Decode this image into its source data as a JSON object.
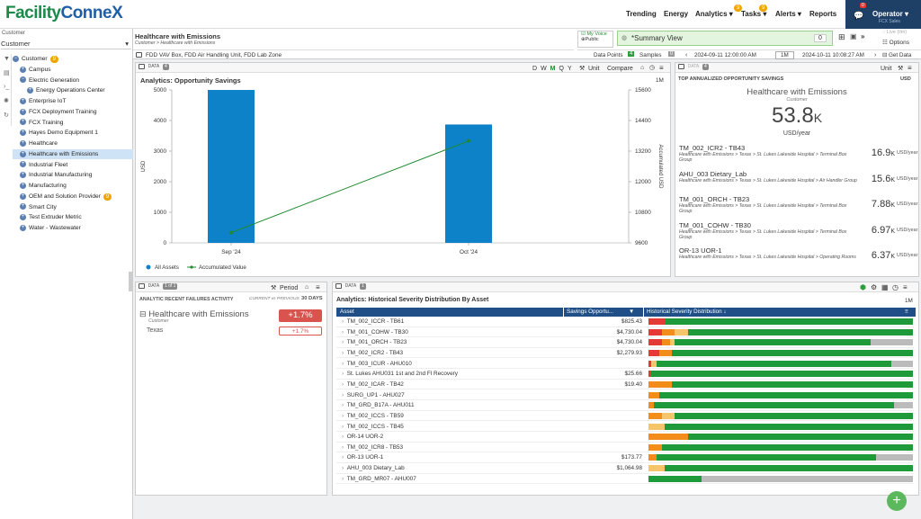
{
  "app": {
    "logo_a": "Facility",
    "logo_b": "Conne",
    "logo_x": "X"
  },
  "nav": {
    "items": [
      "Trending",
      "Energy",
      "Analytics",
      "Tasks",
      "Alerts",
      "Reports"
    ],
    "analytics_badge": "9",
    "tasks_badge": "9"
  },
  "operator": {
    "label": "Operator",
    "sub": "FCX Sales",
    "notif": "0"
  },
  "sidebar": {
    "label": "Customer",
    "select": "Customer",
    "items": [
      {
        "label": "Customer",
        "badge": "9",
        "level": 0,
        "toggle": "minus"
      },
      {
        "label": "Campus",
        "level": 1,
        "toggle": "plus"
      },
      {
        "label": "Electric Generation",
        "level": 1,
        "toggle": "minus"
      },
      {
        "label": "Energy Operations Center",
        "level": 2,
        "toggle": "plus"
      },
      {
        "label": "Enterprise IoT",
        "level": 1,
        "toggle": "plus"
      },
      {
        "label": "FCX Deployment Training",
        "level": 1,
        "toggle": "plus"
      },
      {
        "label": "FCX Training",
        "level": 1,
        "toggle": "plus"
      },
      {
        "label": "Hayes Demo Equipment 1",
        "level": 1,
        "toggle": "plus"
      },
      {
        "label": "Healthcare",
        "level": 1,
        "toggle": "plus"
      },
      {
        "label": "Healthcare with Emissions",
        "level": 1,
        "toggle": "plus",
        "selected": true
      },
      {
        "label": "Industrial Fleet",
        "level": 1,
        "toggle": "plus"
      },
      {
        "label": "Industrial Manufacturing",
        "level": 1,
        "toggle": "plus"
      },
      {
        "label": "Manufacturing",
        "level": 1,
        "toggle": "plus"
      },
      {
        "label": "OEM and Solution Provider",
        "badge": "9",
        "level": 1,
        "toggle": "plus"
      },
      {
        "label": "Smart City",
        "level": 1,
        "toggle": "plus"
      },
      {
        "label": "Test Extruder Metric",
        "level": 1,
        "toggle": "plus"
      },
      {
        "label": "Water - Wastewater",
        "level": 1,
        "toggle": "plus"
      }
    ]
  },
  "header": {
    "title": "Healthcare with Emissions",
    "breadcrumb": "Customer > Healthcare with Emissions",
    "my_voice": "My Voice",
    "public": "Public",
    "view": "*Summary View",
    "view_count": "0",
    "live": "Live (llm)",
    "options": "Options",
    "filter": "FDD VAV Box, FDD Air Handling Unit, FDD Lab Zone",
    "data_points_label": "Data Points",
    "data_points": "4",
    "samples_label": "Samples",
    "samples": "0",
    "date_from": "2024-09-11 12:00:00 AM",
    "range": "1M",
    "date_to": "2024-10-11 10:08:27 AM",
    "get_data": "Get Data"
  },
  "chart_panel": {
    "tag": "DATA",
    "tag_count": "4",
    "periods": [
      "D",
      "W",
      "M",
      "Q",
      "Y"
    ],
    "active_period": "M",
    "unit": "Unit",
    "compare": "Compare",
    "title": "Analytics: Opportunity Savings",
    "range": "1M",
    "legend_bar": "All Assets",
    "legend_line": "Accumulated Value"
  },
  "chart_data": {
    "type": "bar",
    "categories": [
      "Sep '24",
      "Oct '24"
    ],
    "series": [
      {
        "name": "All Assets",
        "type": "bar",
        "values": [
          5000,
          3870
        ]
      },
      {
        "name": "Accumulated Value",
        "type": "line",
        "axis": "right",
        "values": [
          10000,
          13600
        ]
      }
    ],
    "ylabel": "USD",
    "y2label": "Accumulated USD",
    "ylim": [
      0,
      5000
    ],
    "y2lim": [
      9600,
      15600
    ],
    "yticks": [
      0,
      1000,
      2000,
      3000,
      4000,
      5000
    ],
    "y2ticks": [
      9600,
      10800,
      12000,
      13200,
      14400,
      15600
    ],
    "colors": {
      "bar": "#0d82c9",
      "line": "#1e8a2e"
    }
  },
  "kpi": {
    "tag": "DATA",
    "tag_count": "4",
    "unit": "Unit",
    "header": "TOP ANNUALIZED OPPORTUNITY SAVINGS",
    "header_unit": "USD",
    "title": "Healthcare with Emissions",
    "sub": "Customer",
    "value": "53.8",
    "suffix": "K",
    "value_unit": "USD/year",
    "rows": [
      {
        "t": "TM_002_ICR2 - TB43",
        "s": "Healthcare with Emissions > Texas > St. Lukes Lakeside Hospital > Terminal Box Group",
        "n": "16.9",
        "k": "K",
        "u": "USD/year"
      },
      {
        "t": "AHU_003 Dietary_Lab",
        "s": "Healthcare with Emissions > Texas > St. Lukes Lakeside Hospital > Air Handler Group",
        "n": "15.6",
        "k": "K",
        "u": "USD/year"
      },
      {
        "t": "TM_001_ORCH - TB23",
        "s": "Healthcare with Emissions > Texas > St. Lukes Lakeside Hospital > Terminal Box Group",
        "n": "7.88",
        "k": "K",
        "u": "USD/year"
      },
      {
        "t": "TM_001_COHW - TB30",
        "s": "Healthcare with Emissions > Texas > St. Lukes Lakeside Hospital > Terminal Box Group",
        "n": "6.97",
        "k": "K",
        "u": "USD/year"
      },
      {
        "t": "OR-13 UOR-1",
        "s": "Healthcare with Emissions > Texas > St. Lukes Lakeside Hospital > Operating Rooms",
        "n": "6.37",
        "k": "K",
        "u": "USD/year"
      }
    ]
  },
  "failures": {
    "tag": "DATA",
    "tag_count": "1 of 1",
    "period": "Period",
    "header": "ANALYTIC RECENT FAILURES ACTIVITY",
    "cmp": "CURRENT vs PREVIOUS",
    "days": "30 DAYS",
    "name": "Healthcare with Emissions",
    "sub": "Customer",
    "delta": "+1.7%",
    "child": "Texas",
    "child_delta": "+1.7%"
  },
  "grid": {
    "tag": "DATA",
    "tag_count": "1",
    "title": "Analytics: Historical Severity Distribution By Asset",
    "range": "1M",
    "col_asset": "Asset",
    "col_savings": "Savings Opportu...",
    "col_sev": "Historical Severity Distribution",
    "rows": [
      {
        "a": "TM_002_ICCR - TB61",
        "v": "$825.43",
        "sev": [
          [
            "#e53935",
            0,
            6
          ],
          [
            "#1e9a3a",
            6,
            100
          ]
        ]
      },
      {
        "a": "TM_001_COHW - TB30",
        "v": "$4,730.04",
        "sev": [
          [
            "#e53935",
            0,
            5
          ],
          [
            "#f28c1a",
            5,
            10
          ],
          [
            "#f5c46b",
            10,
            15
          ],
          [
            "#1e9a3a",
            15,
            100
          ]
        ]
      },
      {
        "a": "TM_001_ORCH - TB23",
        "v": "$4,730.04",
        "sev": [
          [
            "#e53935",
            0,
            5
          ],
          [
            "#f28c1a",
            5,
            8
          ],
          [
            "#f5c46b",
            8,
            10
          ],
          [
            "#1e9a3a",
            10,
            84
          ],
          [
            "#bbbbbb",
            84,
            100
          ]
        ]
      },
      {
        "a": "TM_002_ICR2 - TB43",
        "v": "$2,279.93",
        "sev": [
          [
            "#e53935",
            0,
            4
          ],
          [
            "#f28c1a",
            4,
            9
          ],
          [
            "#1e9a3a",
            9,
            100
          ]
        ]
      },
      {
        "a": "TM_003_ICUR - AHU010",
        "v": "",
        "sev": [
          [
            "#e53935",
            0,
            1
          ],
          [
            "#f5c46b",
            1,
            3
          ],
          [
            "#1e9a3a",
            3,
            92
          ],
          [
            "#bbbbbb",
            92,
            100
          ]
        ]
      },
      {
        "a": "St. Lukes AHU031 1st and 2nd Fl Recovery",
        "v": "$25.66",
        "sev": [
          [
            "#e53935",
            0,
            1
          ],
          [
            "#1e9a3a",
            1,
            100
          ]
        ]
      },
      {
        "a": "TM_002_ICAR - TB42",
        "v": "$19.40",
        "sev": [
          [
            "#f28c1a",
            0,
            9
          ],
          [
            "#1e9a3a",
            9,
            100
          ]
        ]
      },
      {
        "a": "SURG_UP1 - AHU027",
        "v": "",
        "sev": [
          [
            "#f28c1a",
            0,
            4
          ],
          [
            "#1e9a3a",
            4,
            100
          ]
        ]
      },
      {
        "a": "TM_GRD_B17A - AHU011",
        "v": "",
        "sev": [
          [
            "#f28c1a",
            0,
            2
          ],
          [
            "#1e9a3a",
            2,
            93
          ],
          [
            "#bbbbbb",
            93,
            100
          ]
        ]
      },
      {
        "a": "TM_002_ICCS - TB59",
        "v": "",
        "sev": [
          [
            "#f28c1a",
            0,
            5
          ],
          [
            "#f5c46b",
            5,
            10
          ],
          [
            "#1e9a3a",
            10,
            100
          ]
        ]
      },
      {
        "a": "TM_002_ICCS - TB45",
        "v": "",
        "sev": [
          [
            "#f5c46b",
            0,
            6
          ],
          [
            "#1e9a3a",
            6,
            100
          ]
        ]
      },
      {
        "a": "OR-14 UOR-2",
        "v": "",
        "sev": [
          [
            "#f28c1a",
            0,
            15
          ],
          [
            "#1e9a3a",
            15,
            100
          ]
        ]
      },
      {
        "a": "TM_002_ICR8 - TB53",
        "v": "",
        "sev": [
          [
            "#f28c1a",
            0,
            5
          ],
          [
            "#1e9a3a",
            5,
            100
          ]
        ]
      },
      {
        "a": "OR-13 UOR-1",
        "v": "$173.77",
        "sev": [
          [
            "#f28c1a",
            0,
            3
          ],
          [
            "#1e9a3a",
            3,
            86
          ],
          [
            "#bbbbbb",
            86,
            100
          ]
        ]
      },
      {
        "a": "AHU_003 Dietary_Lab",
        "v": "$1,064.98",
        "sev": [
          [
            "#f5c46b",
            0,
            6
          ],
          [
            "#1e9a3a",
            6,
            100
          ]
        ]
      },
      {
        "a": "TM_GRD_MR07 - AHU007",
        "v": "",
        "sev": [
          [
            "#1e9a3a",
            0,
            20
          ],
          [
            "#bbbbbb",
            20,
            100
          ]
        ]
      }
    ]
  },
  "fab": "+"
}
